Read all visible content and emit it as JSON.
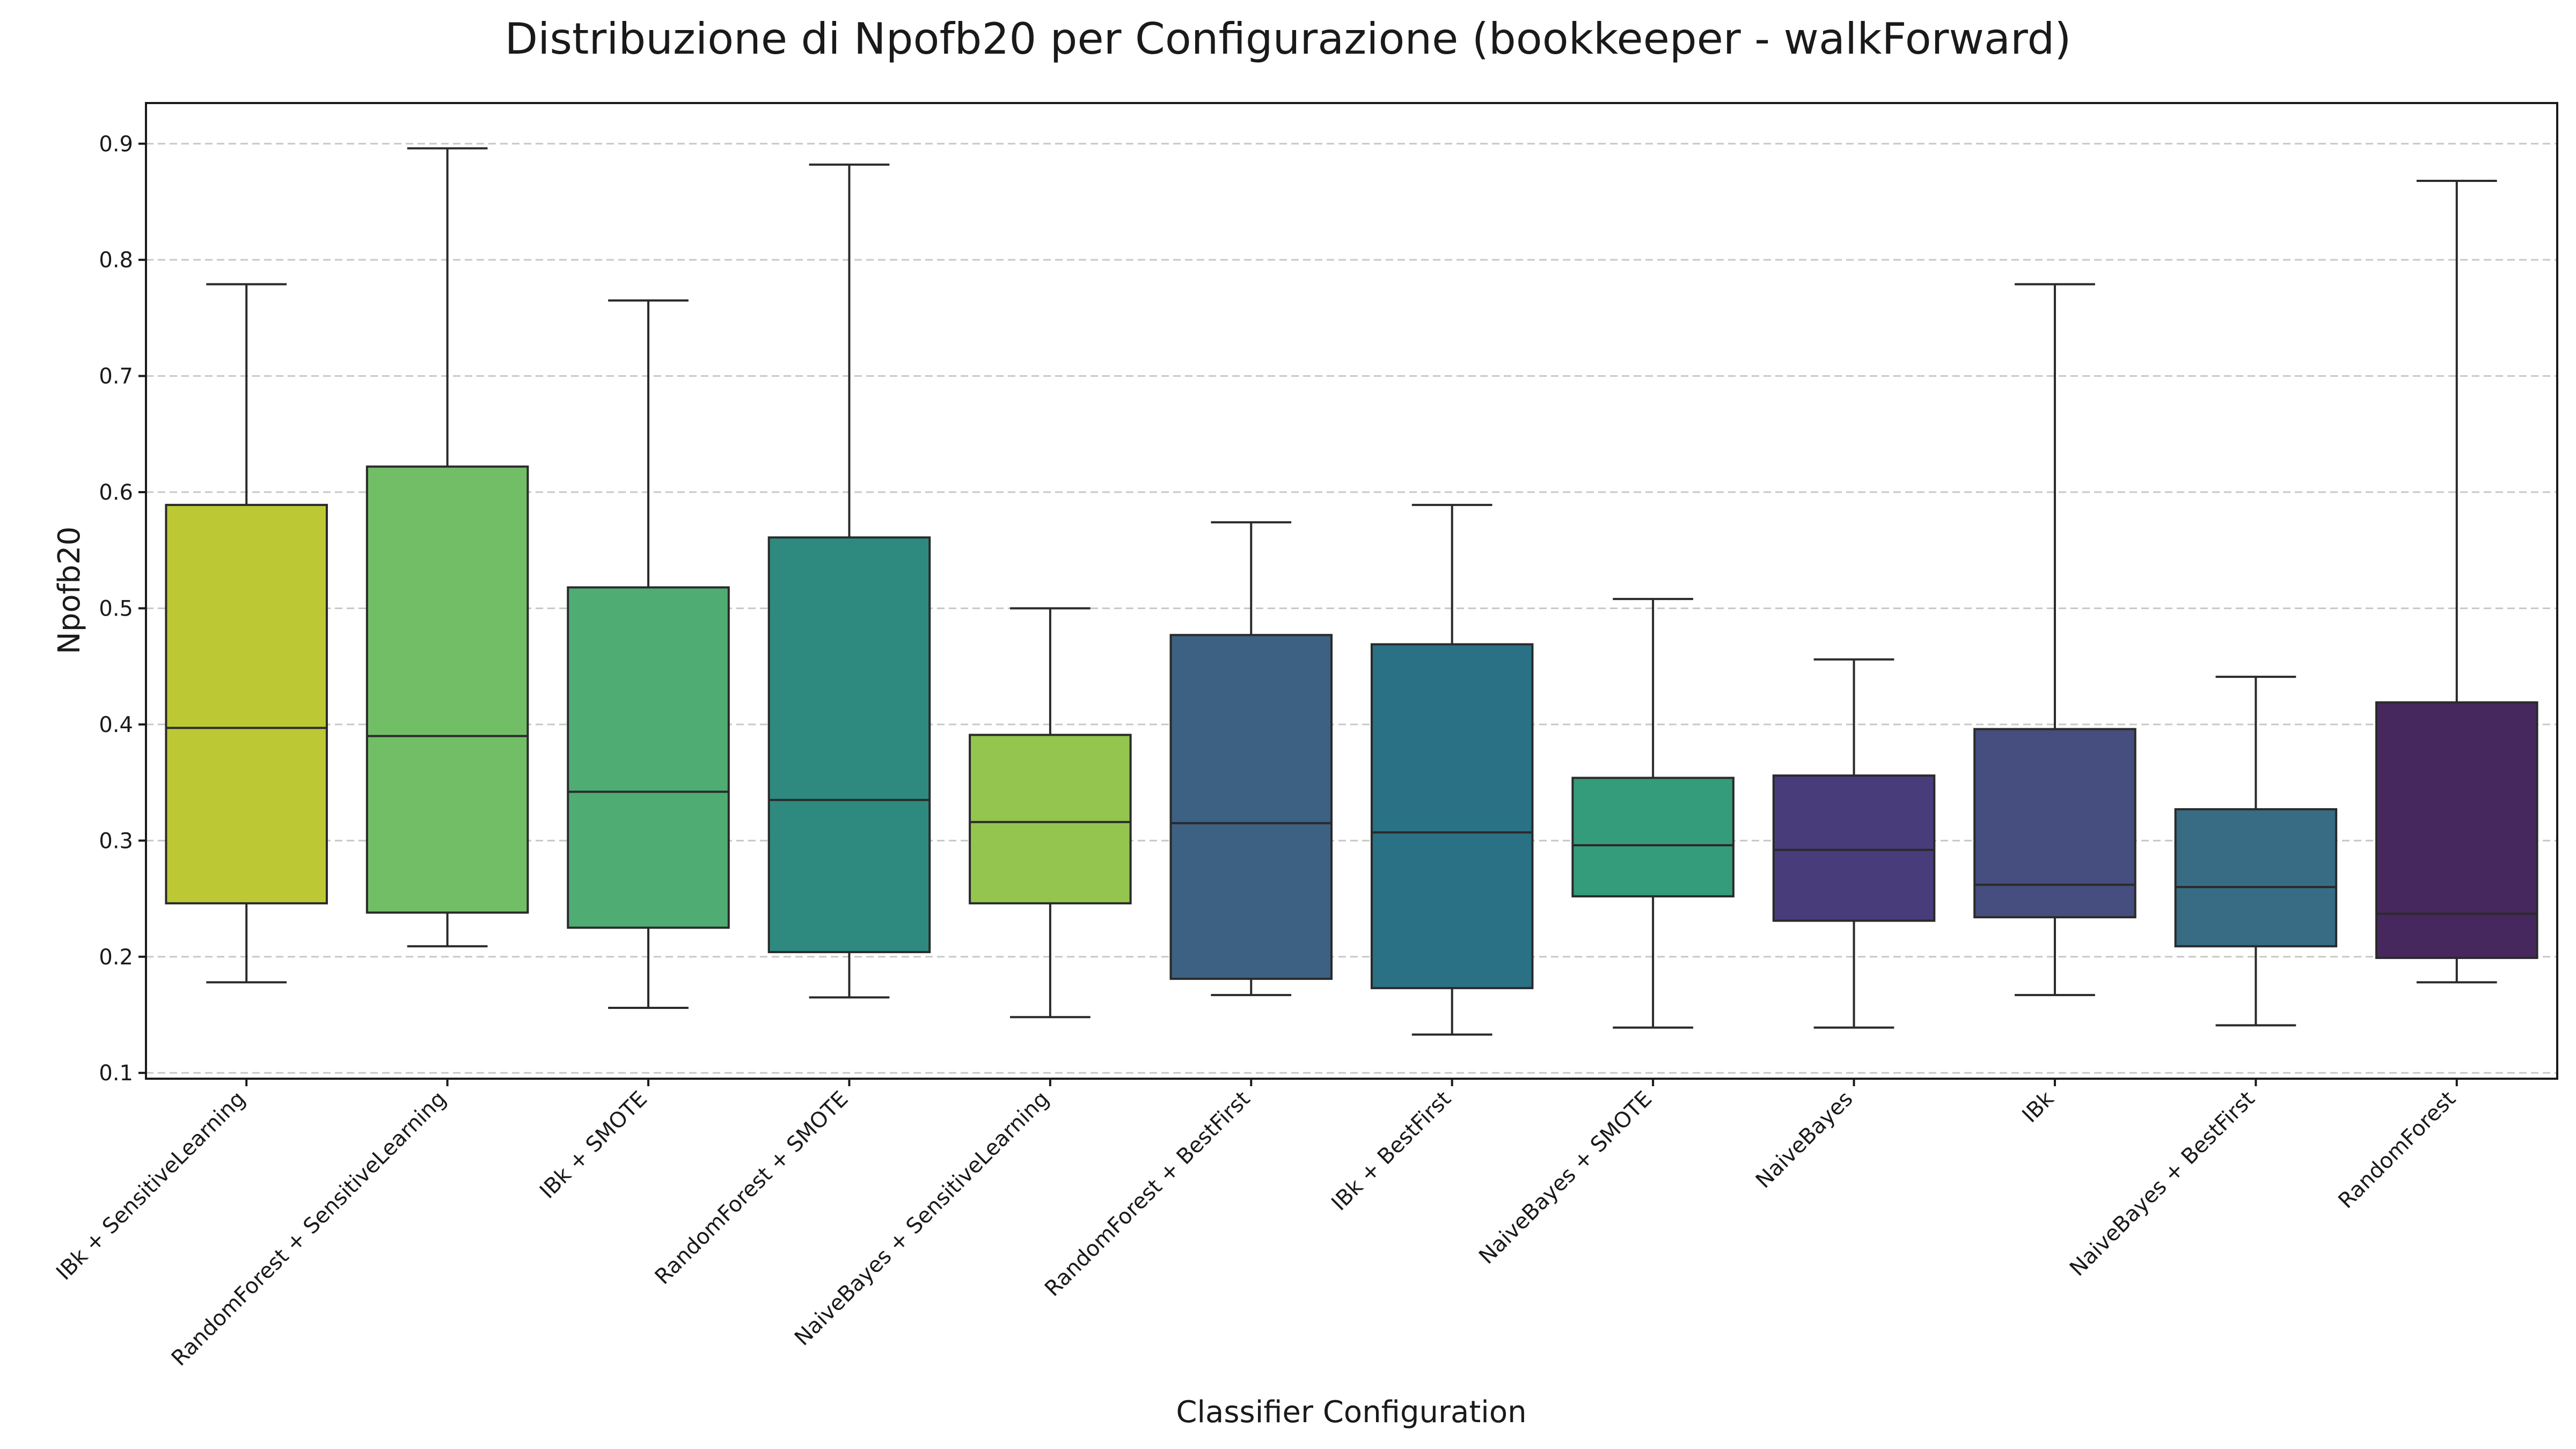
{
  "chart_data": {
    "type": "box",
    "title": "Distribuzione di Npofb20 per Configurazione (bookkeeper - walkForward)",
    "xlabel": "Classifier Configuration",
    "ylabel": "Npofb20",
    "ylim": [
      0.095,
      0.935
    ],
    "yticks": [
      0.1,
      0.2,
      0.3,
      0.4,
      0.5,
      0.6,
      0.7,
      0.8,
      0.9
    ],
    "ytick_labels": [
      "0.1",
      "0.2",
      "0.3",
      "0.4",
      "0.5",
      "0.6",
      "0.7",
      "0.8",
      "0.9"
    ],
    "grid": "horizontal dashed",
    "categories": [
      "IBk + SensitiveLearning",
      "RandomForest + SensitiveLearning",
      "IBk + SMOTE",
      "RandomForest + SMOTE",
      "NaiveBayes + SensitiveLearning",
      "RandomForest + BestFirst",
      "IBk + BestFirst",
      "NaiveBayes + SMOTE",
      "NaiveBayes",
      "IBk",
      "NaiveBayes + BestFirst",
      "RandomForest"
    ],
    "boxes": [
      {
        "whislo": 0.178,
        "q1": 0.246,
        "med": 0.397,
        "q3": 0.589,
        "whishi": 0.779,
        "color": "#bcc935"
      },
      {
        "whislo": 0.209,
        "q1": 0.238,
        "med": 0.39,
        "q3": 0.622,
        "whishi": 0.896,
        "color": "#72be67"
      },
      {
        "whislo": 0.156,
        "q1": 0.225,
        "med": 0.342,
        "q3": 0.518,
        "whishi": 0.765,
        "color": "#4fad73"
      },
      {
        "whislo": 0.165,
        "q1": 0.204,
        "med": 0.335,
        "q3": 0.561,
        "whishi": 0.882,
        "color": "#2e8a7f"
      },
      {
        "whislo": 0.148,
        "q1": 0.246,
        "med": 0.316,
        "q3": 0.391,
        "whishi": 0.5,
        "color": "#94c54f"
      },
      {
        "whislo": 0.167,
        "q1": 0.181,
        "med": 0.315,
        "q3": 0.477,
        "whishi": 0.574,
        "color": "#3d6183"
      },
      {
        "whislo": 0.133,
        "q1": 0.173,
        "med": 0.307,
        "q3": 0.469,
        "whishi": 0.589,
        "color": "#2a7185"
      },
      {
        "whislo": 0.139,
        "q1": 0.252,
        "med": 0.296,
        "q3": 0.354,
        "whishi": 0.508,
        "color": "#349b7b"
      },
      {
        "whislo": 0.139,
        "q1": 0.231,
        "med": 0.292,
        "q3": 0.356,
        "whishi": 0.456,
        "color": "#493c7b"
      },
      {
        "whislo": 0.167,
        "q1": 0.234,
        "med": 0.262,
        "q3": 0.396,
        "whishi": 0.779,
        "color": "#454e7f"
      },
      {
        "whislo": 0.141,
        "q1": 0.209,
        "med": 0.26,
        "q3": 0.327,
        "whishi": 0.441,
        "color": "#376c84"
      },
      {
        "whislo": 0.178,
        "q1": 0.199,
        "med": 0.237,
        "q3": 0.419,
        "whishi": 0.868,
        "color": "#46285f"
      }
    ]
  }
}
